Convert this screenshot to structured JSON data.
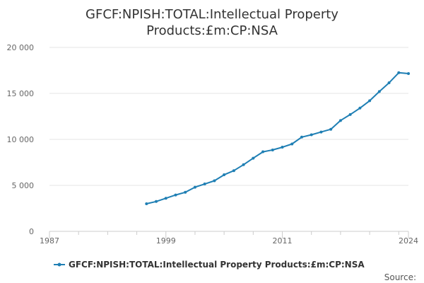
{
  "chart_data": {
    "type": "line",
    "title_lines": [
      "GFCF:NPISH:TOTAL:Intellectual Property",
      "Products:£m:CP:NSA"
    ],
    "xlabel": "",
    "ylabel": "",
    "xlim": [
      1987,
      2024
    ],
    "ylim": [
      0,
      20000
    ],
    "x_ticks": [
      1987,
      1999,
      2011,
      2024
    ],
    "x_tick_labels": [
      "1987",
      "1999",
      "2011",
      "2024"
    ],
    "y_ticks": [
      0,
      5000,
      10000,
      15000,
      20000
    ],
    "y_tick_labels": [
      "0",
      "5 000",
      "10 000",
      "15 000",
      "20 000"
    ],
    "grid": "horizontal",
    "legend_position": "bottom",
    "series": [
      {
        "name": "GFCF:NPISH:TOTAL:Intellectual Property Products:£m:CP:NSA",
        "color": "#1f7fb4",
        "x": [
          1997,
          1998,
          1999,
          2000,
          2001,
          2002,
          2003,
          2004,
          2005,
          2006,
          2007,
          2008,
          2009,
          2010,
          2011,
          2012,
          2013,
          2014,
          2015,
          2016,
          2017,
          2018,
          2019,
          2020,
          2021,
          2022,
          2023,
          2024
        ],
        "values": [
          3000,
          3250,
          3600,
          3950,
          4250,
          4800,
          5150,
          5500,
          6150,
          6600,
          7250,
          7950,
          8650,
          8850,
          9150,
          9500,
          10250,
          10500,
          10800,
          11100,
          12050,
          12700,
          13400,
          14200,
          15200,
          16150,
          17250,
          17150
        ]
      }
    ]
  },
  "source_label": "Source:"
}
